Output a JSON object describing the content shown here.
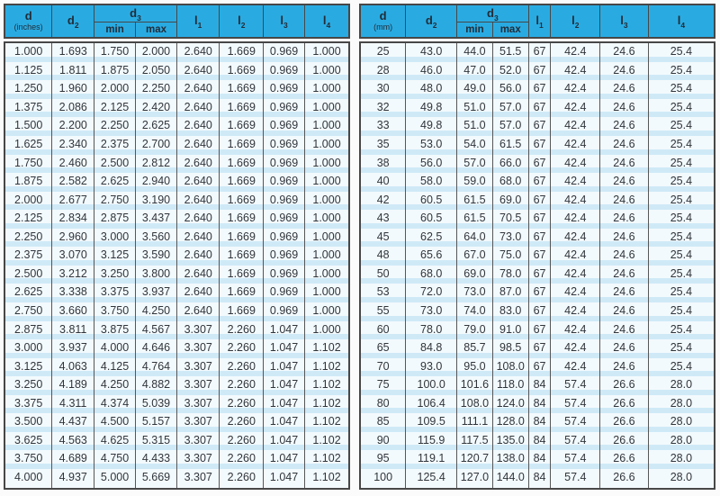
{
  "colors": {
    "header_bg": "#29abe2",
    "header_text": "#222c38",
    "row_bg": "#f3fafd",
    "row_stripe": "#cfe9f7",
    "border": "#474747",
    "body_text": "#30353b"
  },
  "tables": [
    {
      "title": "dimensions-inches",
      "header": {
        "d": {
          "line1": "d",
          "line2": "(inches)"
        },
        "d2": {
          "base": "d",
          "sub": "2"
        },
        "d3": {
          "base": "d",
          "sub": "3"
        },
        "min": "min",
        "max": "max",
        "l1": {
          "base": "l",
          "sub": "1"
        },
        "l2": {
          "base": "l",
          "sub": "2"
        },
        "l3": {
          "base": "l",
          "sub": "3"
        },
        "l4": {
          "base": "l",
          "sub": "4"
        }
      },
      "rows": [
        [
          "1.000",
          "1.693",
          "1.750",
          "2.000",
          "2.640",
          "1.669",
          "0.969",
          "1.000"
        ],
        [
          "1.125",
          "1.811",
          "1.875",
          "2.050",
          "2.640",
          "1.669",
          "0.969",
          "1.000"
        ],
        [
          "1.250",
          "1.960",
          "2.000",
          "2.250",
          "2.640",
          "1.669",
          "0.969",
          "1.000"
        ],
        [
          "1.375",
          "2.086",
          "2.125",
          "2.420",
          "2.640",
          "1.669",
          "0.969",
          "1.000"
        ],
        [
          "1.500",
          "2.200",
          "2.250",
          "2.625",
          "2.640",
          "1.669",
          "0.969",
          "1.000"
        ],
        [
          "1.625",
          "2.340",
          "2.375",
          "2.700",
          "2.640",
          "1.669",
          "0.969",
          "1.000"
        ],
        [
          "1.750",
          "2.460",
          "2.500",
          "2.812",
          "2.640",
          "1.669",
          "0.969",
          "1.000"
        ],
        [
          "1.875",
          "2.582",
          "2.625",
          "2.940",
          "2.640",
          "1.669",
          "0.969",
          "1.000"
        ],
        [
          "2.000",
          "2.677",
          "2.750",
          "3.190",
          "2.640",
          "1.669",
          "0.969",
          "1.000"
        ],
        [
          "2.125",
          "2.834",
          "2.875",
          "3.437",
          "2.640",
          "1.669",
          "0.969",
          "1.000"
        ],
        [
          "2.250",
          "2.960",
          "3.000",
          "3.560",
          "2.640",
          "1.669",
          "0.969",
          "1.000"
        ],
        [
          "2.375",
          "3.070",
          "3.125",
          "3.590",
          "2.640",
          "1.669",
          "0.969",
          "1.000"
        ],
        [
          "2.500",
          "3.212",
          "3.250",
          "3.800",
          "2.640",
          "1.669",
          "0.969",
          "1.000"
        ],
        [
          "2.625",
          "3.338",
          "3.375",
          "3.937",
          "2.640",
          "1.669",
          "0.969",
          "1.000"
        ],
        [
          "2.750",
          "3.660",
          "3.750",
          "4.250",
          "2.640",
          "1.669",
          "0.969",
          "1.000"
        ],
        [
          "2.875",
          "3.811",
          "3.875",
          "4.567",
          "3.307",
          "2.260",
          "1.047",
          "1.000"
        ],
        [
          "3.000",
          "3.937",
          "4.000",
          "4.646",
          "3.307",
          "2.260",
          "1.047",
          "1.102"
        ],
        [
          "3.125",
          "4.063",
          "4.125",
          "4.764",
          "3.307",
          "2.260",
          "1.047",
          "1.102"
        ],
        [
          "3.250",
          "4.189",
          "4.250",
          "4.882",
          "3.307",
          "2.260",
          "1.047",
          "1.102"
        ],
        [
          "3.375",
          "4.311",
          "4.374",
          "5.039",
          "3.307",
          "2.260",
          "1.047",
          "1.102"
        ],
        [
          "3.500",
          "4.437",
          "4.500",
          "5.157",
          "3.307",
          "2.260",
          "1.047",
          "1.102"
        ],
        [
          "3.625",
          "4.563",
          "4.625",
          "5.315",
          "3.307",
          "2.260",
          "1.047",
          "1.102"
        ],
        [
          "3.750",
          "4.689",
          "4.750",
          "4.433",
          "3.307",
          "2.260",
          "1.047",
          "1.102"
        ],
        [
          "4.000",
          "4.937",
          "5.000",
          "5.669",
          "3.307",
          "2.260",
          "1.047",
          "1.102"
        ]
      ]
    },
    {
      "title": "dimensions-mm",
      "header": {
        "d": {
          "line1": "d",
          "line2": "(mm)"
        },
        "d2": {
          "base": "d",
          "sub": "2"
        },
        "d3": {
          "base": "d",
          "sub": "3"
        },
        "min": "min",
        "max": "max",
        "l1": {
          "base": "l",
          "sub": "1"
        },
        "l2": {
          "base": "l",
          "sub": "2"
        },
        "l3": {
          "base": "l",
          "sub": "3"
        },
        "l4": {
          "base": "l",
          "sub": "4"
        }
      },
      "rows": [
        [
          "25",
          "43.0",
          "44.0",
          "51.5",
          "67",
          "42.4",
          "24.6",
          "25.4"
        ],
        [
          "28",
          "46.0",
          "47.0",
          "52.0",
          "67",
          "42.4",
          "24.6",
          "25.4"
        ],
        [
          "30",
          "48.0",
          "49.0",
          "56.0",
          "67",
          "42.4",
          "24.6",
          "25.4"
        ],
        [
          "32",
          "49.8",
          "51.0",
          "57.0",
          "67",
          "42.4",
          "24.6",
          "25.4"
        ],
        [
          "33",
          "49.8",
          "51.0",
          "57.0",
          "67",
          "42.4",
          "24.6",
          "25.4"
        ],
        [
          "35",
          "53.0",
          "54.0",
          "61.5",
          "67",
          "42.4",
          "24.6",
          "25.4"
        ],
        [
          "38",
          "56.0",
          "57.0",
          "66.0",
          "67",
          "42.4",
          "24.6",
          "25.4"
        ],
        [
          "40",
          "58.0",
          "59.0",
          "68.0",
          "67",
          "42.4",
          "24.6",
          "25.4"
        ],
        [
          "42",
          "60.5",
          "61.5",
          "69.0",
          "67",
          "42.4",
          "24.6",
          "25.4"
        ],
        [
          "43",
          "60.5",
          "61.5",
          "70.5",
          "67",
          "42.4",
          "24.6",
          "25.4"
        ],
        [
          "45",
          "62.5",
          "64.0",
          "73.0",
          "67",
          "42.4",
          "24.6",
          "25.4"
        ],
        [
          "48",
          "65.6",
          "67.0",
          "75.0",
          "67",
          "42.4",
          "24.6",
          "25.4"
        ],
        [
          "50",
          "68.0",
          "69.0",
          "78.0",
          "67",
          "42.4",
          "24.6",
          "25.4"
        ],
        [
          "53",
          "72.0",
          "73.0",
          "87.0",
          "67",
          "42.4",
          "24.6",
          "25.4"
        ],
        [
          "55",
          "73.0",
          "74.0",
          "83.0",
          "67",
          "42.4",
          "24.6",
          "25.4"
        ],
        [
          "60",
          "78.0",
          "79.0",
          "91.0",
          "67",
          "42.4",
          "24.6",
          "25.4"
        ],
        [
          "65",
          "84.8",
          "85.7",
          "98.5",
          "67",
          "42.4",
          "24.6",
          "25.4"
        ],
        [
          "70",
          "93.0",
          "95.0",
          "108.0",
          "67",
          "42.4",
          "24.6",
          "25.4"
        ],
        [
          "75",
          "100.0",
          "101.6",
          "118.0",
          "84",
          "57.4",
          "26.6",
          "28.0"
        ],
        [
          "80",
          "106.4",
          "108.0",
          "124.0",
          "84",
          "57.4",
          "26.6",
          "28.0"
        ],
        [
          "85",
          "109.5",
          "111.1",
          "128.0",
          "84",
          "57.4",
          "26.6",
          "28.0"
        ],
        [
          "90",
          "115.9",
          "117.5",
          "135.0",
          "84",
          "57.4",
          "26.6",
          "28.0"
        ],
        [
          "95",
          "119.1",
          "120.7",
          "138.0",
          "84",
          "57.4",
          "26.6",
          "28.0"
        ],
        [
          "100",
          "125.4",
          "127.0",
          "144.0",
          "84",
          "57.4",
          "26.6",
          "28.0"
        ]
      ]
    }
  ]
}
